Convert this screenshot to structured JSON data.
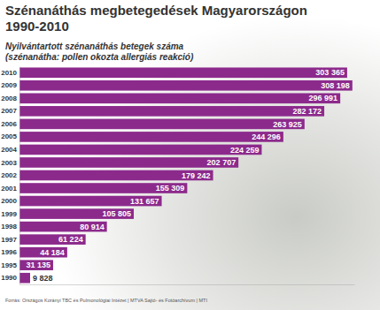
{
  "chart_data": {
    "type": "bar",
    "orientation": "horizontal",
    "title": "Szénanáthás megbetegedések Magyarországon 1990-2010",
    "subtitle": "Nyilvántartott szénanáthás betegek száma (szénanátha: pollen okozta allergiás reakció)",
    "annotations": [
      "Forrás: Országos Korányi TBC és Pulmonológiai Intézet | MTVA Sajtó- és Fotóarchívum | MTI"
    ],
    "categories": [
      "2010",
      "2009",
      "2008",
      "2007",
      "2006",
      "2005",
      "2004",
      "2003",
      "2002",
      "2001",
      "2000",
      "1999",
      "1998",
      "1997",
      "1996",
      "1995",
      "1990"
    ],
    "values": [
      303365,
      308198,
      296991,
      282172,
      263925,
      244296,
      224259,
      202707,
      179242,
      155309,
      131657,
      105805,
      80914,
      61224,
      44184,
      31135,
      9828
    ],
    "value_labels": [
      "303 365",
      "308 198",
      "296 991",
      "282 172",
      "263 925",
      "244 296",
      "224 259",
      "202 707",
      "179 242",
      "155 309",
      "131 657",
      "105 805",
      "80 914",
      "61 224",
      "44 184",
      "31 135",
      "9 828"
    ],
    "color": "#8c2a8c",
    "xlim": [
      0,
      310000
    ],
    "data_labels": true,
    "tick_labels": "y",
    "grid": false
  }
}
